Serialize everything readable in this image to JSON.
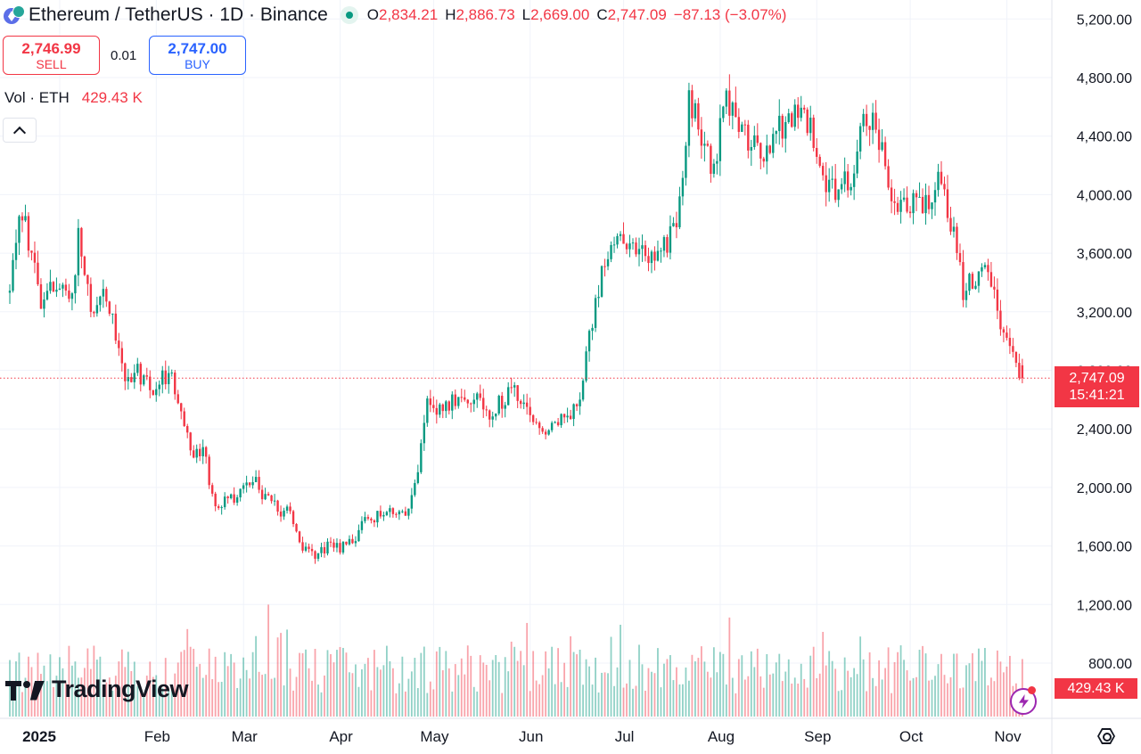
{
  "header": {
    "title": "Ethereum / TetherUS · 1D · Binance",
    "ohlc": [
      {
        "key": "O",
        "value": "2,834.21"
      },
      {
        "key": "H",
        "value": "2,886.73"
      },
      {
        "key": "L",
        "value": "2,669.00"
      },
      {
        "key": "C",
        "value": "2,747.09"
      }
    ],
    "change": "−87.13 (−3.07%)"
  },
  "trade": {
    "sell_price": "2,746.99",
    "sell_label": "SELL",
    "spread": "0.01",
    "buy_price": "2,747.00",
    "buy_label": "BUY"
  },
  "volume_legend": {
    "name": "Vol · ETH",
    "value": "429.43 K"
  },
  "logo": {
    "text": "TradingView"
  },
  "price_tag": {
    "price": "2,747.09",
    "countdown": "15:41:21"
  },
  "volume_tag": "429.43 K",
  "colors": {
    "up": "#089981",
    "down": "#f23645",
    "grid": "#f0f3fa",
    "text": "#131722",
    "accent": "#2962ff"
  },
  "chart_data": {
    "type": "candlestick",
    "interval": "1D",
    "y_ticks": [
      800,
      1200,
      1600,
      2000,
      2400,
      2800,
      3200,
      3600,
      4000,
      4400,
      4800,
      5200
    ],
    "y_tick_labels": [
      "800.00",
      "1,200.00",
      "1,600.00",
      "2,000.00",
      "2,400.00",
      "2,800.00",
      "3,200.00",
      "3,600.00",
      "4,000.00",
      "4,400.00",
      "4,800.00",
      "5,200.00"
    ],
    "ylim": [
      500,
      5250
    ],
    "x_ticks": [
      {
        "label": "2025",
        "day": 0
      },
      {
        "label": "Feb",
        "day": 31
      },
      {
        "label": "Mar",
        "day": 59
      },
      {
        "label": "Apr",
        "day": 90
      },
      {
        "label": "May",
        "day": 120
      },
      {
        "label": "Jun",
        "day": 151
      },
      {
        "label": "Jul",
        "day": 181
      },
      {
        "label": "Aug",
        "day": 212
      },
      {
        "label": "Sep",
        "day": 243
      },
      {
        "label": "Oct",
        "day": 273
      },
      {
        "label": "Nov",
        "day": 304
      }
    ],
    "last_price": 2747.09,
    "close_path": [
      [
        0,
        3330
      ],
      [
        3,
        3900
      ],
      [
        6,
        3700
      ],
      [
        10,
        3300
      ],
      [
        14,
        3350
      ],
      [
        20,
        3310
      ],
      [
        22,
        3720
      ],
      [
        26,
        3180
      ],
      [
        30,
        3400
      ],
      [
        34,
        3050
      ],
      [
        38,
        2700
      ],
      [
        41,
        2800
      ],
      [
        45,
        2680
      ],
      [
        49,
        2750
      ],
      [
        52,
        2780
      ],
      [
        55,
        2480
      ],
      [
        58,
        2240
      ],
      [
        62,
        2250
      ],
      [
        66,
        1880
      ],
      [
        70,
        1910
      ],
      [
        74,
        1960
      ],
      [
        78,
        2080
      ],
      [
        82,
        1930
      ],
      [
        86,
        1850
      ],
      [
        90,
        1820
      ],
      [
        94,
        1590
      ],
      [
        98,
        1530
      ],
      [
        102,
        1600
      ],
      [
        106,
        1580
      ],
      [
        110,
        1620
      ],
      [
        114,
        1790
      ],
      [
        118,
        1800
      ],
      [
        122,
        1840
      ],
      [
        126,
        1800
      ],
      [
        130,
        2000
      ],
      [
        134,
        2580
      ],
      [
        138,
        2520
      ],
      [
        142,
        2600
      ],
      [
        146,
        2650
      ],
      [
        150,
        2600
      ],
      [
        154,
        2490
      ],
      [
        158,
        2600
      ],
      [
        162,
        2660
      ],
      [
        166,
        2500
      ],
      [
        170,
        2390
      ],
      [
        174,
        2450
      ],
      [
        178,
        2500
      ],
      [
        182,
        2550
      ],
      [
        186,
        3000
      ],
      [
        190,
        3500
      ],
      [
        194,
        3700
      ],
      [
        198,
        3600
      ],
      [
        202,
        3700
      ],
      [
        206,
        3560
      ],
      [
        210,
        3650
      ],
      [
        214,
        3810
      ],
      [
        218,
        4620
      ],
      [
        222,
        4430
      ],
      [
        226,
        4180
      ],
      [
        230,
        4670
      ],
      [
        234,
        4430
      ],
      [
        238,
        4370
      ],
      [
        242,
        4280
      ],
      [
        246,
        4420
      ],
      [
        250,
        4480
      ],
      [
        254,
        4560
      ],
      [
        258,
        4420
      ],
      [
        262,
        4050
      ],
      [
        266,
        4060
      ],
      [
        270,
        4150
      ],
      [
        274,
        4510
      ],
      [
        278,
        4550
      ],
      [
        282,
        4000
      ],
      [
        286,
        3900
      ],
      [
        290,
        3970
      ],
      [
        294,
        3950
      ],
      [
        298,
        4100
      ],
      [
        302,
        3830
      ],
      [
        306,
        3350
      ],
      [
        310,
        3450
      ],
      [
        314,
        3500
      ],
      [
        318,
        3100
      ],
      [
        322,
        2960
      ],
      [
        325,
        2747.09
      ]
    ],
    "volume": {
      "legend": "Vol · ETH",
      "last": "429.43 K"
    }
  }
}
